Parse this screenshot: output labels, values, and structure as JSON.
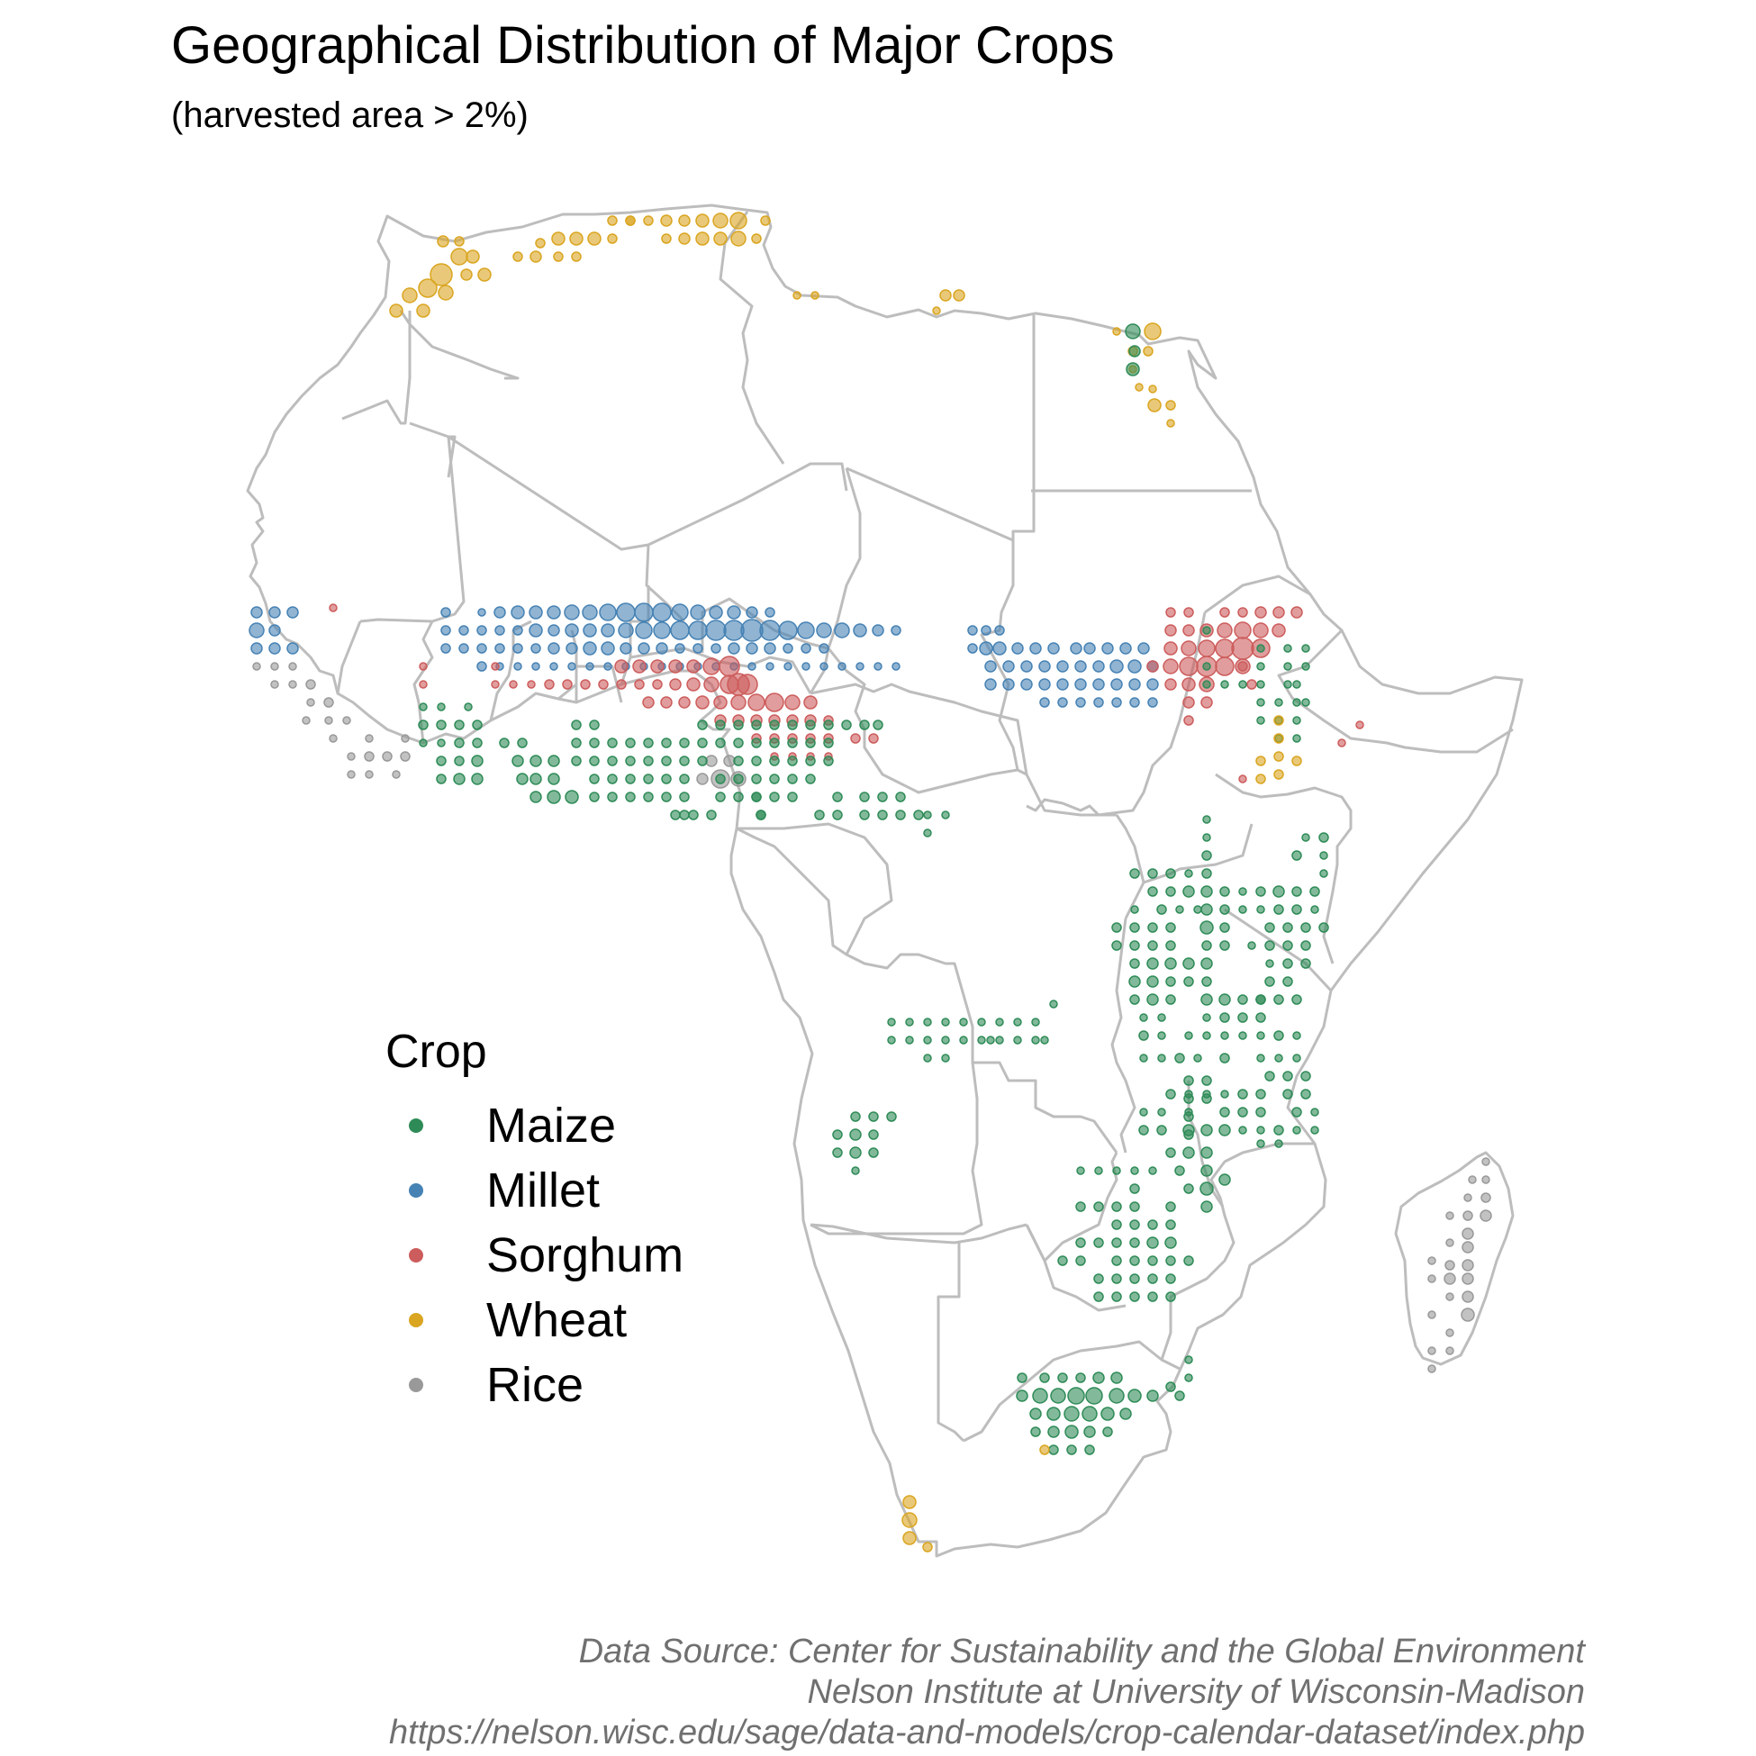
{
  "title": "Geographical Distribution of Major Crops",
  "subtitle": "(harvested area > 2%)",
  "legend": {
    "title": "Crop",
    "items": [
      {
        "label": "Maize",
        "color": "#2e8b57"
      },
      {
        "label": "Millet",
        "color": "#4682b4"
      },
      {
        "label": "Sorghum",
        "color": "#cd5c5c"
      },
      {
        "label": "Wheat",
        "color": "#daa520"
      },
      {
        "label": "Rice",
        "color": "#999999"
      }
    ]
  },
  "caption": {
    "line1": "Data Source: Center for Sustainability and the Global Environment",
    "line2": "Nelson Institute at University of Wisconsin-Madison",
    "line3": "https://nelson.wisc.edu/sage/data-and-models/crop-calendar-dataset/index.php"
  },
  "map": {
    "region": "Africa",
    "border_color": "#bdbdbd",
    "crop_point_clusters": [
      {
        "crop": "Wheat",
        "area": "Morocco"
      },
      {
        "crop": "Wheat",
        "area": "Algeria / Tunisia coast"
      },
      {
        "crop": "Wheat",
        "area": "Libya coast"
      },
      {
        "crop": "Wheat",
        "area": "Nile Valley, Egypt"
      },
      {
        "crop": "Maize",
        "area": "Nile Delta, Egypt"
      },
      {
        "crop": "Millet",
        "area": "Sahel (Senegal to Chad)"
      },
      {
        "crop": "Millet",
        "area": "Sudan"
      },
      {
        "crop": "Sorghum",
        "area": "Sahel (Mali to Chad)"
      },
      {
        "crop": "Sorghum",
        "area": "Sudan / Ethiopia"
      },
      {
        "crop": "Rice",
        "area": "Guinea coast / Sierra Leone / Liberia"
      },
      {
        "crop": "Rice",
        "area": "Nigeria"
      },
      {
        "crop": "Rice",
        "area": "Madagascar"
      },
      {
        "crop": "Maize",
        "area": "West Africa (Ghana, Nigeria)"
      },
      {
        "crop": "Maize",
        "area": "Ethiopia / Kenya / Uganda / Tanzania"
      },
      {
        "crop": "Maize",
        "area": "DR Congo"
      },
      {
        "crop": "Maize",
        "area": "Angola"
      },
      {
        "crop": "Maize",
        "area": "Malawi / Zambia / Zimbabwe / Mozambique"
      },
      {
        "crop": "Maize",
        "area": "South Africa"
      },
      {
        "crop": "Wheat",
        "area": "Ethiopia"
      },
      {
        "crop": "Wheat",
        "area": "Western Cape, South Africa"
      }
    ]
  }
}
